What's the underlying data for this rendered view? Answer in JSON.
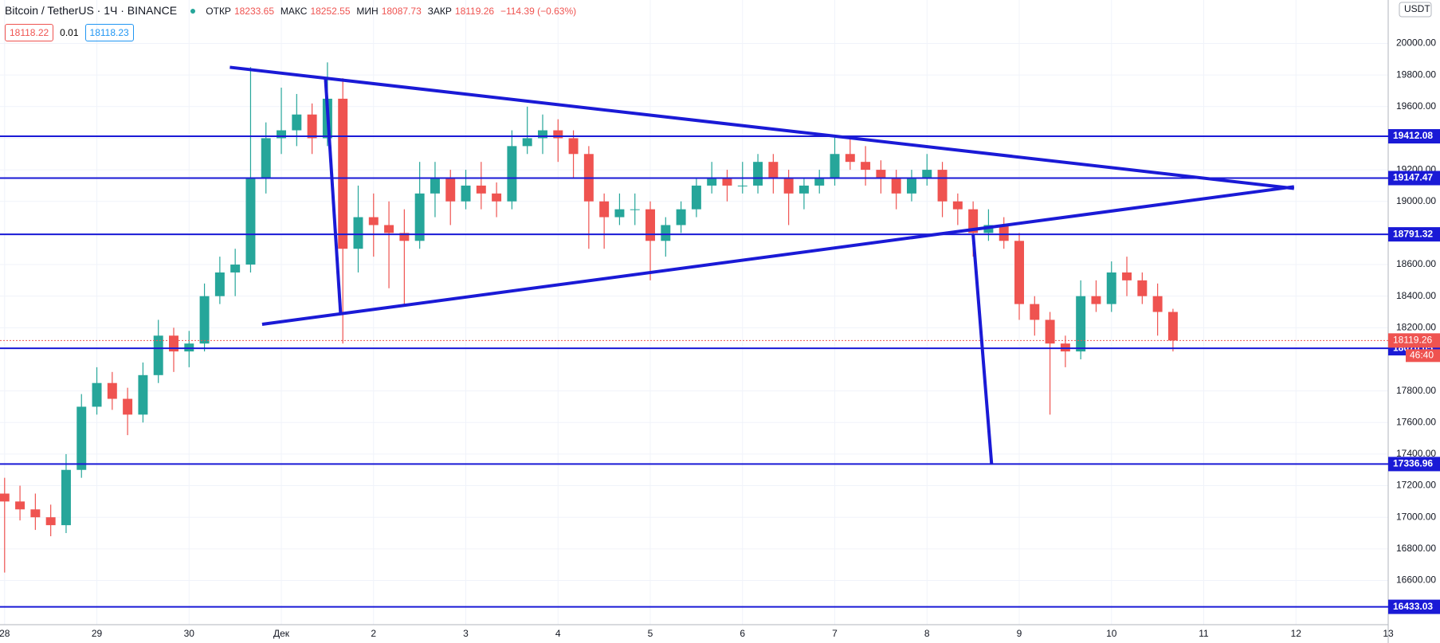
{
  "header": {
    "symbol": "Bitcoin / TetherUS · 1Ч · BINANCE",
    "open_label": "ОТКР",
    "open": 18233.65,
    "high_label": "МАКС",
    "high": 18252.55,
    "low_label": "МИН",
    "low": 18087.73,
    "close_label": "ЗАКР",
    "close": 18119.26,
    "change": "−114.39 (−0.63%)",
    "sell": 18118.22,
    "spread": 0.01,
    "buy": 18118.23,
    "currency": "USDT",
    "countdown": "46:40"
  },
  "chart_data": {
    "type": "candlestick",
    "up_color": "#26a69a",
    "down_color": "#ef5350",
    "line_color": "#1a1ad6",
    "grid": true,
    "xlim": [
      -1.2,
      360
    ],
    "ylim": [
      16320,
      20275
    ],
    "xticks": [
      {
        "value": 0,
        "label": "28"
      },
      {
        "value": 24,
        "label": "29"
      },
      {
        "value": 48,
        "label": "30"
      },
      {
        "value": 72,
        "label": "Дек"
      },
      {
        "value": 96,
        "label": "2"
      },
      {
        "value": 120,
        "label": "3"
      },
      {
        "value": 144,
        "label": "4"
      },
      {
        "value": 168,
        "label": "5"
      },
      {
        "value": 192,
        "label": "6"
      },
      {
        "value": 216,
        "label": "7"
      },
      {
        "value": 240,
        "label": "8"
      },
      {
        "value": 264,
        "label": "9"
      },
      {
        "value": 288,
        "label": "10"
      },
      {
        "value": 312,
        "label": "11"
      },
      {
        "value": 336,
        "label": "12"
      },
      {
        "value": 360,
        "label": "13"
      }
    ],
    "yticks": [
      {
        "value": 16600,
        "label": "16600.00"
      },
      {
        "value": 16800,
        "label": "16800.00"
      },
      {
        "value": 17000,
        "label": "17000.00"
      },
      {
        "value": 17200,
        "label": "17200.00"
      },
      {
        "value": 17400,
        "label": "17400.00"
      },
      {
        "value": 17600,
        "label": "17600.00"
      },
      {
        "value": 17800,
        "label": "17800.00"
      },
      {
        "value": 18200,
        "label": "18200.00"
      },
      {
        "value": 18400,
        "label": "18400.00"
      },
      {
        "value": 18600,
        "label": "18600.00"
      },
      {
        "value": 18800,
        "label": "18800.00"
      },
      {
        "value": 19000,
        "label": "19000.00"
      },
      {
        "value": 19200,
        "label": "19200.00"
      },
      {
        "value": 19400,
        "label": "19400.00"
      },
      {
        "value": 19600,
        "label": "19600.00"
      },
      {
        "value": 19800,
        "label": "19800.00"
      },
      {
        "value": 20000,
        "label": "20000.00"
      }
    ],
    "x": [
      0,
      4,
      8,
      12,
      16,
      20,
      24,
      28,
      32,
      36,
      40,
      44,
      48,
      52,
      56,
      60,
      64,
      68,
      72,
      76,
      80,
      84,
      88,
      92,
      96,
      100,
      104,
      108,
      112,
      116,
      120,
      124,
      128,
      132,
      136,
      140,
      144,
      148,
      152,
      156,
      160,
      164,
      168,
      172,
      176,
      180,
      184,
      188,
      192,
      196,
      200,
      204,
      208,
      212,
      216,
      220,
      224,
      228,
      232,
      236,
      240,
      244,
      248,
      252,
      256,
      260,
      264,
      268,
      272,
      276,
      280,
      284,
      288,
      292,
      296,
      300,
      304
    ],
    "ohlc": [
      [
        17150,
        17250,
        16650,
        17100
      ],
      [
        17100,
        17200,
        16980,
        17050
      ],
      [
        17050,
        17150,
        16920,
        17000
      ],
      [
        17000,
        17080,
        16880,
        16950
      ],
      [
        16950,
        17400,
        16900,
        17300
      ],
      [
        17300,
        17780,
        17250,
        17700
      ],
      [
        17700,
        17950,
        17650,
        17850
      ],
      [
        17850,
        17920,
        17680,
        17750
      ],
      [
        17750,
        17820,
        17520,
        17650
      ],
      [
        17650,
        17980,
        17600,
        17900
      ],
      [
        17900,
        18250,
        17850,
        18150
      ],
      [
        18150,
        18200,
        17920,
        18050
      ],
      [
        18050,
        18180,
        17950,
        18100
      ],
      [
        18100,
        18480,
        18050,
        18400
      ],
      [
        18400,
        18650,
        18350,
        18550
      ],
      [
        18550,
        18700,
        18400,
        18600
      ],
      [
        18600,
        19850,
        18550,
        19150
      ],
      [
        19150,
        19500,
        19050,
        19400
      ],
      [
        19400,
        19720,
        19300,
        19450
      ],
      [
        19450,
        19680,
        19350,
        19550
      ],
      [
        19550,
        19620,
        19300,
        19400
      ],
      [
        19400,
        19880,
        19350,
        19650
      ],
      [
        19650,
        19780,
        18100,
        18700
      ],
      [
        18700,
        19100,
        18550,
        18900
      ],
      [
        18900,
        19050,
        18650,
        18850
      ],
      [
        18850,
        19000,
        18450,
        18800
      ],
      [
        18800,
        18950,
        18350,
        18750
      ],
      [
        18750,
        19250,
        18700,
        19050
      ],
      [
        19050,
        19250,
        18900,
        19150
      ],
      [
        19150,
        19200,
        18850,
        19000
      ],
      [
        19000,
        19200,
        18950,
        19100
      ],
      [
        19100,
        19250,
        18950,
        19050
      ],
      [
        19050,
        19120,
        18900,
        19000
      ],
      [
        19000,
        19450,
        18950,
        19350
      ],
      [
        19350,
        19600,
        19300,
        19400
      ],
      [
        19400,
        19550,
        19300,
        19450
      ],
      [
        19450,
        19520,
        19250,
        19400
      ],
      [
        19400,
        19450,
        19150,
        19300
      ],
      [
        19300,
        19350,
        18700,
        19000
      ],
      [
        19000,
        19050,
        18700,
        18900
      ],
      [
        18900,
        19050,
        18850,
        18950
      ],
      [
        18950,
        19050,
        18850,
        18950
      ],
      [
        18950,
        19000,
        18500,
        18750
      ],
      [
        18750,
        18900,
        18650,
        18850
      ],
      [
        18850,
        19000,
        18800,
        18950
      ],
      [
        18950,
        19150,
        18900,
        19100
      ],
      [
        19100,
        19250,
        19050,
        19150
      ],
      [
        19150,
        19200,
        19000,
        19100
      ],
      [
        19100,
        19250,
        19050,
        19100
      ],
      [
        19100,
        19300,
        19050,
        19250
      ],
      [
        19250,
        19300,
        19050,
        19150
      ],
      [
        19150,
        19200,
        18850,
        19050
      ],
      [
        19050,
        19150,
        18950,
        19100
      ],
      [
        19100,
        19200,
        19050,
        19150
      ],
      [
        19150,
        19420,
        19100,
        19300
      ],
      [
        19300,
        19400,
        19200,
        19250
      ],
      [
        19250,
        19350,
        19100,
        19200
      ],
      [
        19200,
        19260,
        19050,
        19150
      ],
      [
        19150,
        19200,
        18950,
        19050
      ],
      [
        19050,
        19200,
        19000,
        19150
      ],
      [
        19150,
        19300,
        19100,
        19200
      ],
      [
        19200,
        19250,
        18900,
        19000
      ],
      [
        19000,
        19050,
        18850,
        18950
      ],
      [
        18950,
        19000,
        18650,
        18800
      ],
      [
        18800,
        18950,
        18750,
        18850
      ],
      [
        18850,
        18900,
        18700,
        18750
      ],
      [
        18750,
        18800,
        18250,
        18350
      ],
      [
        18350,
        18400,
        18150,
        18250
      ],
      [
        18250,
        18300,
        17650,
        18100
      ],
      [
        18100,
        18150,
        17950,
        18050
      ],
      [
        18050,
        18500,
        18000,
        18400
      ],
      [
        18400,
        18500,
        18300,
        18350
      ],
      [
        18350,
        18620,
        18300,
        18550
      ],
      [
        18550,
        18650,
        18400,
        18500
      ],
      [
        18500,
        18550,
        18350,
        18400
      ],
      [
        18400,
        18480,
        18150,
        18300
      ],
      [
        18300,
        18320,
        18050,
        18119.26
      ]
    ],
    "levels": [
      19412.08,
      19147.47,
      18791.32,
      18070.05,
      17336.96,
      16433.03
    ],
    "trend_lines": [
      {
        "x": [
          58.6,
          335.5
        ],
        "y": [
          19849,
          19082
        ]
      },
      {
        "x": [
          67,
          335.5
        ],
        "y": [
          18222,
          19093
        ]
      },
      {
        "x": [
          83.5,
          87.4
        ],
        "y": [
          19773,
          18297
        ]
      },
      {
        "x": [
          252,
          256.8
        ],
        "y": [
          18791,
          17338
        ]
      }
    ]
  }
}
